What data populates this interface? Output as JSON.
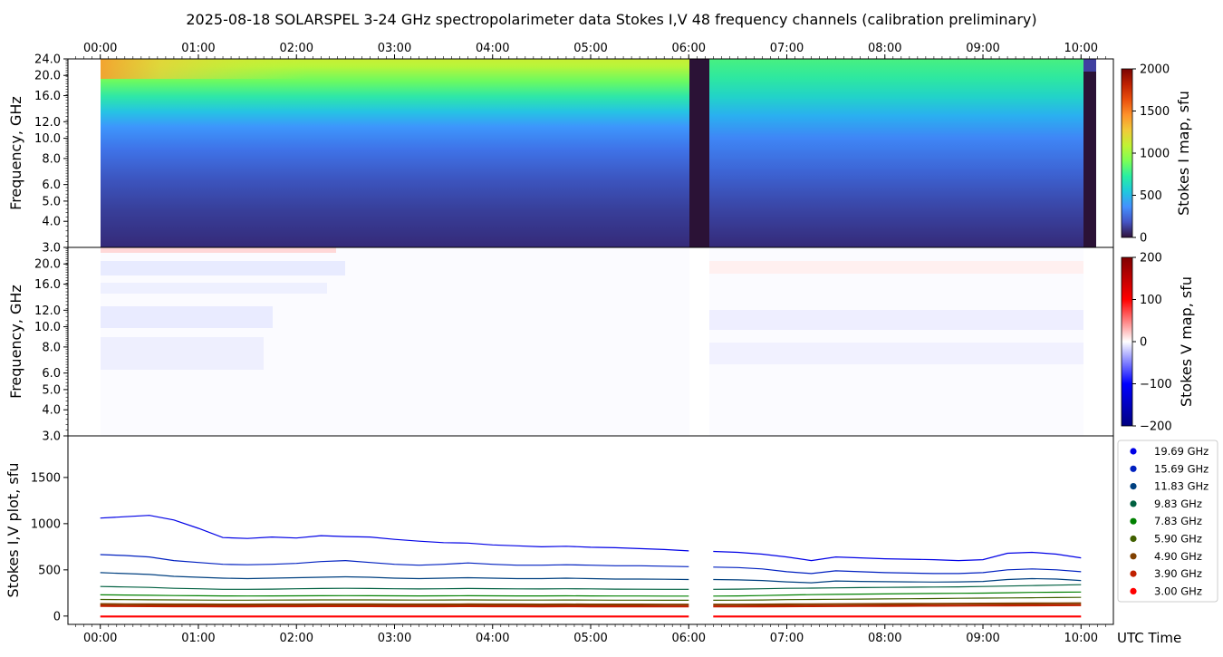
{
  "title": "2025-08-18  SOLARSPEL  3-24 GHz spectropolarimeter data   Stokes I,V   48 frequency channels   (calibration preliminary)",
  "colors": {
    "stokes_i_cmap": [
      "#30123b",
      "#4454c4",
      "#4490fe",
      "#1fc8de",
      "#29efa2",
      "#7dff56",
      "#c1f334",
      "#f1ca3a",
      "#fe922a",
      "#ea4f0d",
      "#be2102",
      "#7a0403"
    ],
    "stokes_v_cmap": [
      "#000080",
      "#0000ff",
      "#ffffff",
      "#ff0000",
      "#800000"
    ],
    "gap_color": "#2b1236"
  },
  "chart_data": [
    {
      "type": "heatmap",
      "panel": "stokes-i-map",
      "ylabel": "Frequency, GHz",
      "x_top_ticks": [
        "00:00",
        "01:00",
        "02:00",
        "03:00",
        "04:00",
        "05:00",
        "06:00",
        "07:00",
        "08:00",
        "09:00",
        "10:00"
      ],
      "y_ticks": [
        "3.0",
        "4.0",
        "5.0",
        "6.0",
        "8.0",
        "10.0",
        "12.0",
        "16.0",
        "20.0",
        "24.0"
      ],
      "y_scale": "log",
      "ylim": [
        3.0,
        24.0
      ],
      "xlim_hours": [
        -0.33,
        10.33
      ],
      "data_start_hours": 0.0,
      "data_end_hours": 10.15,
      "gaps_hours": [
        [
          6.0,
          6.2
        ],
        [
          10.02,
          10.15
        ]
      ],
      "colorbar": {
        "label": "Stokes I map, sfu",
        "ticks": [
          "0",
          "500",
          "1000",
          "1500",
          "2000"
        ],
        "range": [
          0,
          2000
        ]
      },
      "approx_values_sfu": {
        "3.0": 120,
        "5.0": 160,
        "8.0": 230,
        "10.0": 330,
        "12.0": 480,
        "16.0": 650,
        "20.0": 1050,
        "24.0": 1200
      }
    },
    {
      "type": "heatmap",
      "panel": "stokes-v-map",
      "ylabel": "Frequency, GHz",
      "y_ticks": [
        "3.0",
        "4.0",
        "5.0",
        "6.0",
        "8.0",
        "10.0",
        "12.0",
        "16.0",
        "20.0"
      ],
      "y_scale": "log",
      "ylim": [
        3.0,
        24.0
      ],
      "colorbar": {
        "label": "Stokes V map, sfu",
        "ticks": [
          "200",
          "100",
          "0",
          "−100",
          "−200"
        ],
        "range": [
          -200,
          200
        ]
      }
    },
    {
      "type": "line",
      "panel": "stokes-iv-plot",
      "ylabel": "Stokes I,V plot, sfu",
      "xlabel": "UTC Time",
      "x_ticks": [
        "00:00",
        "01:00",
        "02:00",
        "03:00",
        "04:00",
        "05:00",
        "06:00",
        "07:00",
        "08:00",
        "09:00",
        "10:00"
      ],
      "y_ticks": [
        "0",
        "500",
        "1000",
        "1500"
      ],
      "ylim": [
        -90,
        1950
      ],
      "xlim_hours": [
        -0.33,
        10.33
      ],
      "legend_position": "right",
      "x_hours": [
        0.0,
        0.25,
        0.5,
        0.75,
        1.0,
        1.25,
        1.5,
        1.75,
        2.0,
        2.25,
        2.5,
        2.75,
        3.0,
        3.25,
        3.5,
        3.75,
        4.0,
        4.25,
        4.5,
        4.75,
        5.0,
        5.25,
        5.5,
        5.75,
        6.0,
        6.25,
        6.5,
        6.75,
        7.0,
        7.25,
        7.5,
        7.75,
        8.0,
        8.25,
        8.5,
        8.75,
        9.0,
        9.25,
        9.5,
        9.75,
        10.0
      ],
      "gap_hours": [
        6.0,
        6.2
      ],
      "series": [
        {
          "name": "19.69 GHz",
          "color": "#0000e6",
          "values": [
            1060,
            1075,
            1090,
            1040,
            950,
            850,
            840,
            855,
            845,
            870,
            860,
            855,
            830,
            810,
            795,
            790,
            770,
            760,
            750,
            755,
            745,
            740,
            730,
            720,
            705,
            700,
            690,
            670,
            640,
            600,
            640,
            630,
            620,
            615,
            610,
            600,
            610,
            680,
            690,
            670,
            630
          ]
        },
        {
          "name": "15.69 GHz",
          "color": "#0020c0",
          "values": [
            665,
            655,
            640,
            600,
            580,
            560,
            555,
            560,
            570,
            590,
            600,
            580,
            560,
            550,
            560,
            575,
            560,
            550,
            550,
            555,
            550,
            545,
            545,
            540,
            535,
            530,
            525,
            510,
            480,
            460,
            490,
            480,
            470,
            465,
            460,
            460,
            470,
            500,
            510,
            500,
            480
          ]
        },
        {
          "name": "11.83 GHz",
          "color": "#004080",
          "values": [
            470,
            460,
            450,
            430,
            420,
            410,
            405,
            410,
            415,
            420,
            425,
            420,
            410,
            405,
            410,
            415,
            410,
            405,
            405,
            410,
            405,
            400,
            400,
            398,
            395,
            395,
            392,
            385,
            370,
            360,
            380,
            375,
            372,
            370,
            368,
            370,
            375,
            395,
            405,
            400,
            385
          ]
        },
        {
          "name": "9.83 GHz",
          "color": "#006040",
          "values": [
            320,
            315,
            310,
            300,
            295,
            290,
            290,
            292,
            295,
            298,
            300,
            298,
            295,
            293,
            295,
            298,
            296,
            294,
            293,
            295,
            294,
            292,
            291,
            290,
            290,
            290,
            292,
            295,
            300,
            302,
            305,
            308,
            310,
            312,
            314,
            316,
            320,
            325,
            330,
            335,
            340
          ]
        },
        {
          "name": "7.83 GHz",
          "color": "#008000",
          "values": [
            230,
            228,
            225,
            222,
            220,
            218,
            217,
            218,
            219,
            220,
            221,
            220,
            219,
            218,
            219,
            220,
            219,
            218,
            218,
            219,
            218,
            217,
            217,
            216,
            216,
            216,
            218,
            222,
            228,
            232,
            235,
            238,
            240,
            242,
            244,
            246,
            248,
            252,
            256,
            258,
            260
          ]
        },
        {
          "name": "5.90 GHz",
          "color": "#406000",
          "values": [
            180,
            178,
            176,
            175,
            173,
            172,
            172,
            173,
            174,
            175,
            175,
            175,
            174,
            173,
            174,
            175,
            174,
            173,
            173,
            174,
            173,
            172,
            172,
            171,
            171,
            171,
            172,
            174,
            178,
            180,
            182,
            184,
            186,
            188,
            190,
            192,
            194,
            196,
            198,
            200,
            202
          ]
        },
        {
          "name": "4.90 GHz",
          "color": "#804000",
          "values": [
            130,
            128,
            127,
            126,
            126,
            125,
            125,
            126,
            126,
            127,
            127,
            127,
            126,
            126,
            126,
            127,
            126,
            126,
            125,
            126,
            125,
            125,
            125,
            124,
            124,
            124,
            124,
            125,
            127,
            128,
            129,
            130,
            131,
            132,
            133,
            134,
            135,
            136,
            137,
            138,
            139
          ]
        },
        {
          "name": "3.90 GHz",
          "color": "#c02000",
          "values": [
            110,
            108,
            107,
            106,
            106,
            105,
            105,
            106,
            106,
            107,
            107,
            107,
            106,
            106,
            106,
            107,
            106,
            106,
            105,
            106,
            105,
            105,
            105,
            104,
            104,
            104,
            104,
            105,
            106,
            107,
            108,
            109,
            110,
            111,
            112,
            113,
            114,
            115,
            116,
            117,
            118
          ]
        },
        {
          "name": "3.00 GHz",
          "color": "#ff0000",
          "values": [
            -5,
            -5,
            -5,
            -5,
            -5,
            -5,
            -5,
            -5,
            -5,
            -5,
            -5,
            -5,
            -5,
            -5,
            -5,
            -5,
            -5,
            -5,
            -5,
            -5,
            -5,
            -5,
            -5,
            -5,
            -5,
            -5,
            -5,
            -5,
            -5,
            -5,
            -5,
            -5,
            -5,
            -5,
            -5,
            -5,
            -5,
            -5,
            -5,
            -5,
            -5
          ]
        }
      ]
    }
  ]
}
